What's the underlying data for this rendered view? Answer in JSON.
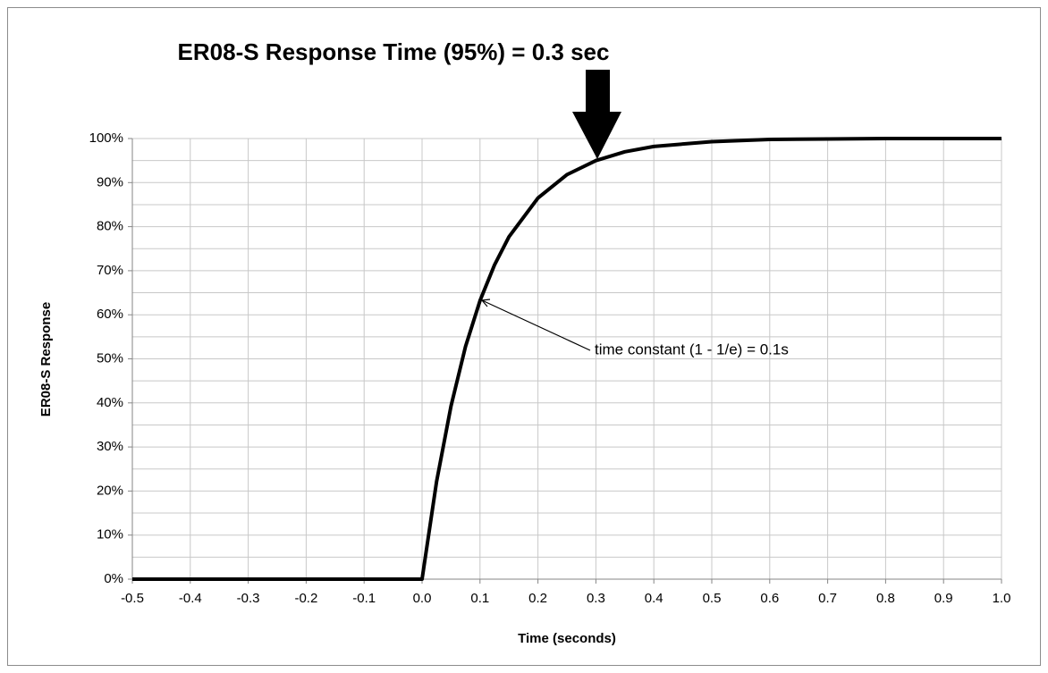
{
  "chart_data": {
    "type": "line",
    "title": "ER08-S Response Time (95%) = 0.3 sec",
    "xlabel": "Time (seconds)",
    "ylabel": "ER08-S Response",
    "annotation": "time constant  (1 - 1/e) = 0.1s",
    "x": [
      -0.5,
      0,
      0.025,
      0.05,
      0.075,
      0.1,
      0.125,
      0.15,
      0.2,
      0.25,
      0.3,
      0.35,
      0.4,
      0.5,
      0.6,
      0.7,
      0.8,
      0.9,
      1.0
    ],
    "series": [
      {
        "name": "ER08-S Response",
        "color": "#000000",
        "values": [
          0,
          0,
          22.1,
          39.3,
          52.8,
          63.2,
          71.3,
          77.7,
          86.5,
          91.8,
          95.0,
          97.0,
          98.2,
          99.3,
          99.8,
          99.9,
          100,
          100,
          100
        ]
      }
    ],
    "xlim": [
      -0.5,
      1.0
    ],
    "xticks": [
      -0.5,
      -0.4,
      -0.3,
      -0.2,
      -0.1,
      {
        "value": 0,
        "label": "0.0"
      },
      0.1,
      0.2,
      0.3,
      0.4,
      0.5,
      0.6,
      0.7,
      0.8,
      0.9,
      {
        "value": 1.0,
        "label": "1.0"
      }
    ],
    "ylim": [
      0,
      100
    ],
    "yticks": [
      {
        "value": 0,
        "label": "0%"
      },
      {
        "value": 10,
        "label": "10%"
      },
      {
        "value": 20,
        "label": "20%"
      },
      {
        "value": 30,
        "label": "30%"
      },
      {
        "value": 40,
        "label": "40%"
      },
      {
        "value": 50,
        "label": "50%"
      },
      {
        "value": 60,
        "label": "60%"
      },
      {
        "value": 70,
        "label": "70%"
      },
      {
        "value": 80,
        "label": "80%"
      },
      {
        "value": 90,
        "label": "90%"
      },
      {
        "value": 100,
        "label": "100%"
      }
    ],
    "y_minor_ticks": [
      5,
      15,
      25,
      35,
      45,
      55,
      65,
      75,
      85,
      95
    ],
    "grid": true
  }
}
